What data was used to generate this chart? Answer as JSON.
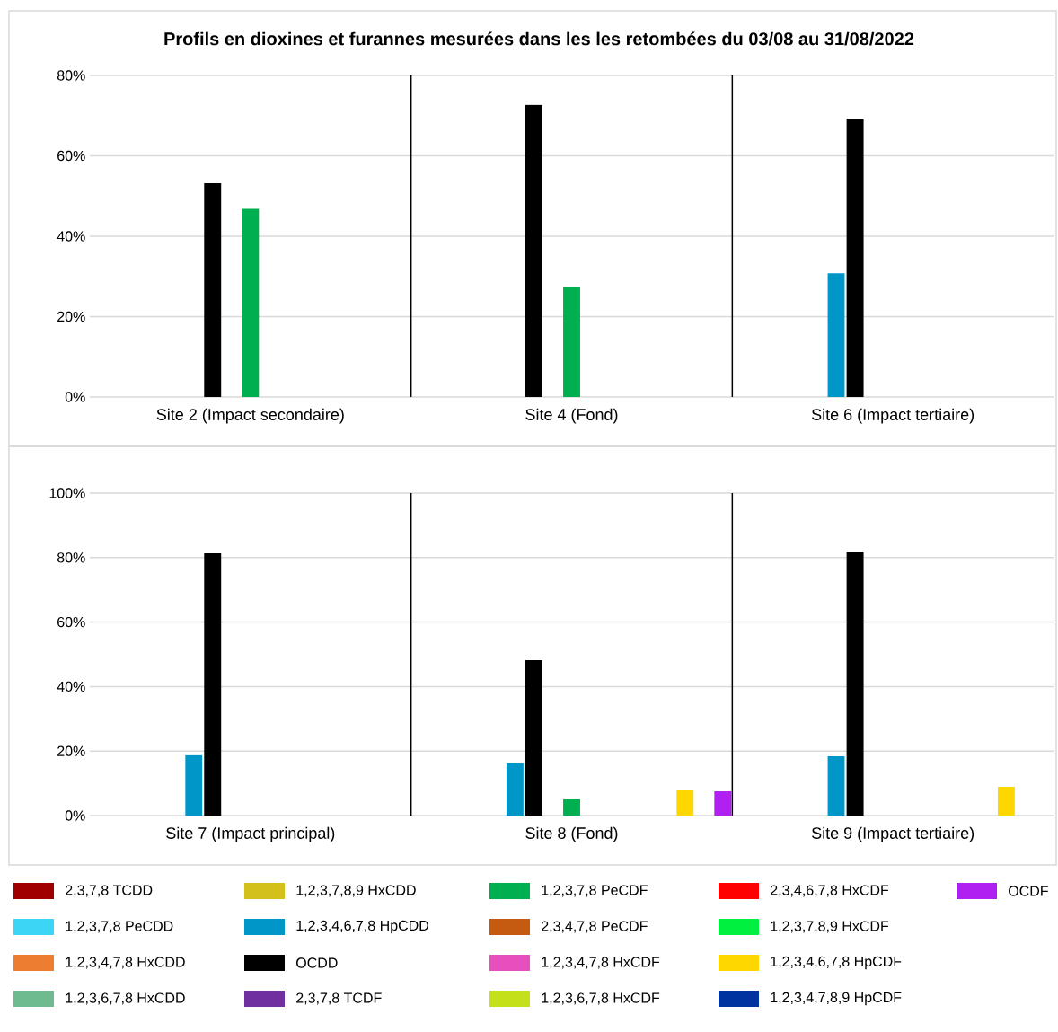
{
  "chart_data": [
    {
      "type": "bar",
      "title": "Profils en dioxines et furannes mesurées dans les les retombées du 03/08 au 31/08/2022",
      "categories": [
        "Site 2 (Impact secondaire)",
        "Site 4 (Fond)",
        "Site 6 (Impact tertiaire)"
      ],
      "ylim": [
        0,
        80
      ],
      "yticks": [
        {
          "value": 0,
          "label": "0%"
        },
        {
          "value": 20,
          "label": "20%"
        },
        {
          "value": 40,
          "label": "40%"
        },
        {
          "value": 60,
          "label": "60%"
        },
        {
          "value": 80,
          "label": "80%"
        }
      ],
      "grid": "y",
      "series": [
        {
          "color": "#a00000",
          "values": [
            null,
            null,
            null
          ]
        },
        {
          "color": "#3dd5f5",
          "values": [
            null,
            null,
            null
          ]
        },
        {
          "color": "#ed7d31",
          "values": [
            null,
            null,
            null
          ]
        },
        {
          "color": "#6dbb8e",
          "values": [
            null,
            null,
            null
          ]
        },
        {
          "color": "#d4c01a",
          "values": [
            null,
            null,
            null
          ]
        },
        {
          "color": "#0096c8",
          "values": [
            null,
            null,
            30.8
          ]
        },
        {
          "color": "#000000",
          "values": [
            53.2,
            72.7,
            69.2
          ]
        },
        {
          "color": "#7030a0",
          "values": [
            null,
            null,
            null
          ]
        },
        {
          "color": "#00b050",
          "values": [
            46.8,
            27.3,
            null
          ]
        },
        {
          "color": "#c55a11",
          "values": [
            null,
            null,
            null
          ]
        },
        {
          "color": "#e84fbe",
          "values": [
            null,
            null,
            null
          ]
        },
        {
          "color": "#c4e01a",
          "values": [
            null,
            null,
            null
          ]
        },
        {
          "color": "#ff0000",
          "values": [
            null,
            null,
            null
          ]
        },
        {
          "color": "#00f040",
          "values": [
            null,
            null,
            null
          ]
        },
        {
          "color": "#ffd700",
          "values": [
            null,
            null,
            null
          ]
        },
        {
          "color": "#0033a0",
          "values": [
            null,
            null,
            null
          ]
        },
        {
          "color": "#b020f0",
          "values": [
            null,
            null,
            null
          ]
        }
      ]
    },
    {
      "type": "bar",
      "categories": [
        "Site 7 (Impact principal)",
        "Site 8 (Fond)",
        "Site 9 (Impact tertiaire)"
      ],
      "ylim": [
        0,
        100
      ],
      "yticks": [
        {
          "value": 0,
          "label": "0%"
        },
        {
          "value": 20,
          "label": "20%"
        },
        {
          "value": 40,
          "label": "40%"
        },
        {
          "value": 60,
          "label": "60%"
        },
        {
          "value": 80,
          "label": "80%"
        },
        {
          "value": 100,
          "label": "100%"
        }
      ],
      "grid": "y",
      "legend": "bottom",
      "series": [
        {
          "name": "2,3,7,8 TCDD",
          "color": "#a00000",
          "values": [
            null,
            null,
            null
          ]
        },
        {
          "name": "1,2,3,7,8 PeCDD",
          "color": "#3dd5f5",
          "values": [
            null,
            null,
            null
          ]
        },
        {
          "name": "1,2,3,4,7,8 HxCDD",
          "color": "#ed7d31",
          "values": [
            null,
            null,
            null
          ]
        },
        {
          "name": "1,2,3,6,7,8 HxCDD",
          "color": "#6dbb8e",
          "values": [
            null,
            null,
            null
          ]
        },
        {
          "name": "1,2,3,7,8,9 HxCDD",
          "color": "#d4c01a",
          "values": [
            null,
            null,
            null
          ]
        },
        {
          "name": "1,2,3,4,6,7,8 HpCDD",
          "color": "#0096c8",
          "values": [
            18.7,
            16.2,
            18.4
          ]
        },
        {
          "name": "OCDD",
          "color": "#000000",
          "values": [
            81.3,
            48.2,
            81.6
          ]
        },
        {
          "name": "2,3,7,8 TCDF",
          "color": "#7030a0",
          "values": [
            null,
            null,
            null
          ]
        },
        {
          "name": "1,2,3,7,8 PeCDF",
          "color": "#00b050",
          "values": [
            null,
            5.0,
            null
          ]
        },
        {
          "name": "2,3,4,7,8 PeCDF",
          "color": "#c55a11",
          "values": [
            null,
            null,
            null
          ]
        },
        {
          "name": "1,2,3,4,7,8 HxCDF",
          "color": "#e84fbe",
          "values": [
            null,
            null,
            null
          ]
        },
        {
          "name": "1,2,3,6,7,8 HxCDF",
          "color": "#c4e01a",
          "values": [
            null,
            null,
            null
          ]
        },
        {
          "name": "2,3,4,6,7,8 HxCDF",
          "color": "#ff0000",
          "values": [
            null,
            null,
            null
          ]
        },
        {
          "name": "1,2,3,7,8,9 HxCDF",
          "color": "#00f040",
          "values": [
            null,
            null,
            null
          ]
        },
        {
          "name": "1,2,3,4,6,7,8 HpCDF",
          "color": "#ffd700",
          "values": [
            null,
            7.8,
            8.9
          ]
        },
        {
          "name": "1,2,3,4,7,8,9 HpCDF",
          "color": "#0033a0",
          "values": [
            null,
            null,
            null
          ]
        },
        {
          "name": "OCDF",
          "color": "#b020f0",
          "values": [
            null,
            7.5,
            null
          ]
        }
      ]
    }
  ]
}
